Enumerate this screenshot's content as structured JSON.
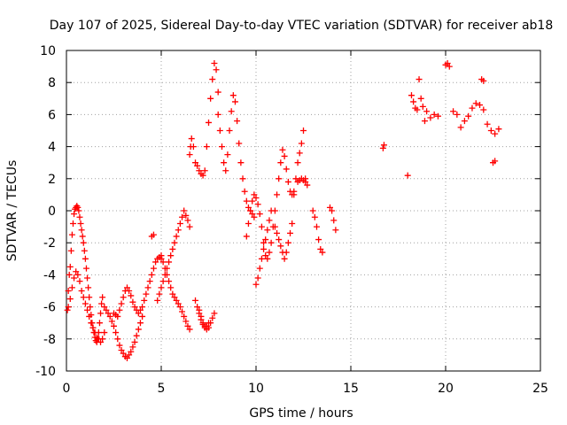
{
  "chart_data": {
    "type": "scatter",
    "title": "Day 107 of 2025, Sidereal Day-to-day VTEC variation (SDTVAR) for receiver ab18",
    "xlabel": "GPS time / hours",
    "ylabel": "SDTVAR / TECUs",
    "xlim": [
      0,
      25
    ],
    "ylim": [
      -10,
      10
    ],
    "xticks": [
      0,
      5,
      10,
      15,
      20,
      25
    ],
    "yticks": [
      -10,
      -8,
      -6,
      -4,
      -2,
      0,
      2,
      4,
      6,
      8,
      10
    ],
    "grid": true,
    "marker": "+",
    "color": "#ff0000",
    "series": [
      {
        "name": "SDTVAR",
        "x": [
          0.05,
          0.1,
          0.15,
          0.2,
          0.25,
          0.3,
          0.35,
          0.4,
          0.45,
          0.5,
          0.55,
          0.6,
          0.65,
          0.7,
          0.75,
          0.8,
          0.85,
          0.9,
          0.95,
          1.0,
          1.05,
          1.1,
          1.15,
          1.2,
          1.25,
          1.3,
          1.35,
          1.4,
          1.45,
          1.5,
          1.55,
          1.6,
          1.65,
          1.7,
          1.75,
          1.8,
          1.85,
          1.9,
          0.1,
          0.2,
          0.3,
          0.4,
          0.5,
          0.6,
          0.7,
          0.8,
          0.9,
          1.0,
          1.1,
          1.2,
          1.3,
          1.4,
          1.5,
          1.6,
          1.7,
          1.8,
          1.9,
          2.0,
          2.0,
          2.1,
          2.2,
          2.3,
          2.4,
          2.5,
          2.6,
          2.7,
          2.8,
          2.9,
          3.0,
          3.1,
          3.2,
          3.3,
          3.4,
          3.5,
          3.6,
          3.7,
          3.8,
          3.9,
          4.0,
          2.5,
          2.6,
          2.7,
          2.8,
          2.9,
          3.0,
          3.1,
          3.2,
          3.3,
          3.4,
          3.5,
          3.6,
          3.7,
          3.8,
          3.9,
          4.0,
          4.1,
          4.2,
          4.3,
          4.4,
          4.5,
          4.6,
          4.7,
          4.8,
          4.9,
          5.0,
          4.5,
          4.6,
          4.8,
          4.9,
          5.0,
          5.1,
          5.2,
          5.3,
          5.4,
          5.5,
          5.6,
          5.7,
          5.8,
          5.9,
          6.0,
          6.1,
          6.2,
          6.3,
          6.4,
          6.5,
          5.0,
          5.1,
          5.2,
          5.3,
          5.4,
          5.5,
          5.6,
          5.7,
          5.8,
          5.9,
          6.0,
          6.1,
          6.2,
          6.3,
          6.4,
          6.5,
          6.5,
          6.55,
          6.6,
          6.7,
          6.8,
          6.9,
          7.0,
          7.1,
          7.2,
          7.3,
          7.4,
          7.5,
          7.6,
          7.7,
          7.8,
          7.9,
          8.0,
          7.0,
          7.1,
          7.2,
          7.3,
          7.4,
          7.5,
          7.6,
          7.7,
          7.8,
          8.0,
          8.1,
          8.2,
          8.3,
          8.4,
          8.5,
          8.6,
          8.7,
          8.8,
          8.9,
          9.0,
          9.1,
          9.2,
          9.3,
          9.4,
          9.5,
          9.6,
          9.7,
          9.8,
          9.9,
          6.8,
          6.9,
          7.0,
          7.1,
          7.2,
          7.3,
          7.4,
          7.5,
          9.5,
          9.6,
          9.7,
          9.8,
          9.9,
          10.0,
          10.1,
          10.2,
          10.3,
          10.4,
          10.5,
          10.6,
          10.7,
          10.8,
          10.9,
          11.0,
          11.1,
          11.2,
          11.3,
          11.4,
          11.5,
          11.6,
          11.7,
          11.8,
          11.9,
          12.0,
          10.0,
          10.1,
          10.2,
          10.3,
          10.4,
          10.5,
          10.6,
          10.7,
          10.8,
          11.0,
          11.1,
          11.2,
          11.3,
          11.4,
          11.5,
          11.6,
          11.7,
          11.8,
          11.9,
          12.0,
          12.1,
          12.2,
          12.3,
          12.4,
          12.5,
          12.6,
          12.7,
          12.2,
          12.3,
          12.4,
          12.5,
          12.6,
          13.0,
          13.1,
          13.2,
          13.3,
          13.4,
          13.5,
          13.9,
          14.0,
          14.1,
          14.2,
          16.7,
          16.75,
          18.0,
          18.2,
          18.3,
          18.4,
          18.5,
          18.6,
          18.7,
          18.8,
          18.9,
          19.0,
          19.2,
          19.4,
          19.6,
          20.0,
          20.1,
          20.2,
          20.4,
          20.6,
          20.8,
          21.0,
          21.2,
          21.4,
          21.6,
          21.8,
          22.0,
          22.2,
          22.4,
          22.6,
          22.8,
          21.9,
          22.0,
          22.5,
          22.6
        ],
        "y": [
          -6.2,
          -5.0,
          -4.0,
          -3.5,
          -2.5,
          -1.5,
          -0.8,
          -0.2,
          0.1,
          0.2,
          0.3,
          0.2,
          0.0,
          -0.4,
          -0.8,
          -1.2,
          -1.6,
          -2.0,
          -2.5,
          -3.0,
          -3.6,
          -4.2,
          -4.8,
          -5.4,
          -6.0,
          -6.5,
          -7.0,
          -7.3,
          -7.6,
          -7.9,
          -8.1,
          -8.2,
          -8.0,
          -7.6,
          -7.0,
          -6.4,
          -5.8,
          -5.4,
          -6.0,
          -5.5,
          -4.8,
          -4.2,
          -3.8,
          -4.0,
          -4.4,
          -5.0,
          -5.4,
          -5.8,
          -6.2,
          -6.6,
          -7.0,
          -7.3,
          -7.6,
          -7.9,
          -8.0,
          -8.2,
          -8.0,
          -7.6,
          -6.0,
          -6.2,
          -6.4,
          -6.6,
          -6.9,
          -7.2,
          -7.6,
          -8.0,
          -8.4,
          -8.7,
          -8.9,
          -9.1,
          -9.2,
          -9.0,
          -8.8,
          -8.5,
          -8.2,
          -7.8,
          -7.4,
          -7.0,
          -6.6,
          -6.4,
          -6.5,
          -6.6,
          -6.2,
          -5.8,
          -5.4,
          -5.0,
          -4.8,
          -5.0,
          -5.3,
          -5.7,
          -6.0,
          -6.2,
          -6.4,
          -6.2,
          -6.0,
          -5.6,
          -5.2,
          -4.8,
          -4.4,
          -4.0,
          -3.6,
          -3.2,
          -3.0,
          -2.9,
          -2.8,
          -1.6,
          -1.5,
          -5.6,
          -5.2,
          -4.8,
          -4.4,
          -4.0,
          -3.6,
          -3.2,
          -2.8,
          -2.4,
          -2.0,
          -1.6,
          -1.2,
          -0.8,
          -0.4,
          0.0,
          -0.3,
          -0.6,
          -1.0,
          -3.0,
          -3.2,
          -3.6,
          -4.0,
          -4.4,
          -4.8,
          -5.2,
          -5.4,
          -5.6,
          -5.8,
          -6.0,
          -6.3,
          -6.6,
          -6.9,
          -7.2,
          -7.4,
          3.5,
          4.0,
          4.5,
          4.0,
          3.0,
          2.8,
          2.5,
          2.3,
          2.2,
          2.5,
          4.0,
          5.5,
          7.0,
          8.2,
          9.2,
          8.8,
          7.4,
          -6.2,
          -6.6,
          -7.0,
          -7.2,
          -7.4,
          -7.3,
          -7.0,
          -6.7,
          -6.4,
          6.0,
          5.0,
          4.0,
          3.0,
          2.5,
          3.5,
          5.0,
          6.2,
          7.2,
          6.8,
          5.6,
          4.2,
          3.0,
          2.0,
          1.2,
          0.6,
          0.2,
          0.0,
          -0.2,
          -0.4,
          -5.6,
          -6.0,
          -6.4,
          -6.8,
          -7.1,
          -7.3,
          -7.2,
          -7.0,
          -1.6,
          -0.8,
          0.0,
          0.6,
          1.0,
          0.8,
          0.4,
          -0.2,
          -1.0,
          -2.0,
          -2.8,
          -3.0,
          -2.6,
          -2.0,
          -1.0,
          0.0,
          1.0,
          2.0,
          3.0,
          3.8,
          3.4,
          2.6,
          1.8,
          1.2,
          1.0,
          1.2,
          -4.6,
          -4.2,
          -3.6,
          -3.0,
          -2.4,
          -1.8,
          -1.2,
          -0.6,
          0.0,
          -1.0,
          -1.4,
          -1.8,
          -2.2,
          -2.6,
          -3.0,
          -2.6,
          -2.0,
          -1.4,
          -0.8,
          1.0,
          2.0,
          3.0,
          3.6,
          4.2,
          5.0,
          2.0,
          1.6,
          1.8,
          1.9,
          2.0,
          1.9,
          1.8,
          0.0,
          -0.4,
          -1.0,
          -1.8,
          -2.4,
          -2.6,
          0.2,
          0.0,
          -0.6,
          -1.2,
          3.9,
          4.1,
          2.2,
          7.2,
          6.8,
          6.4,
          6.3,
          8.2,
          7.0,
          6.5,
          5.6,
          6.2,
          5.8,
          6.0,
          5.9,
          9.1,
          9.2,
          9.0,
          6.2,
          6.0,
          5.2,
          5.6,
          5.9,
          6.4,
          6.7,
          6.6,
          6.3,
          5.4,
          5.0,
          4.8,
          5.1,
          8.2,
          8.1,
          3.0,
          3.1
        ]
      }
    ]
  }
}
